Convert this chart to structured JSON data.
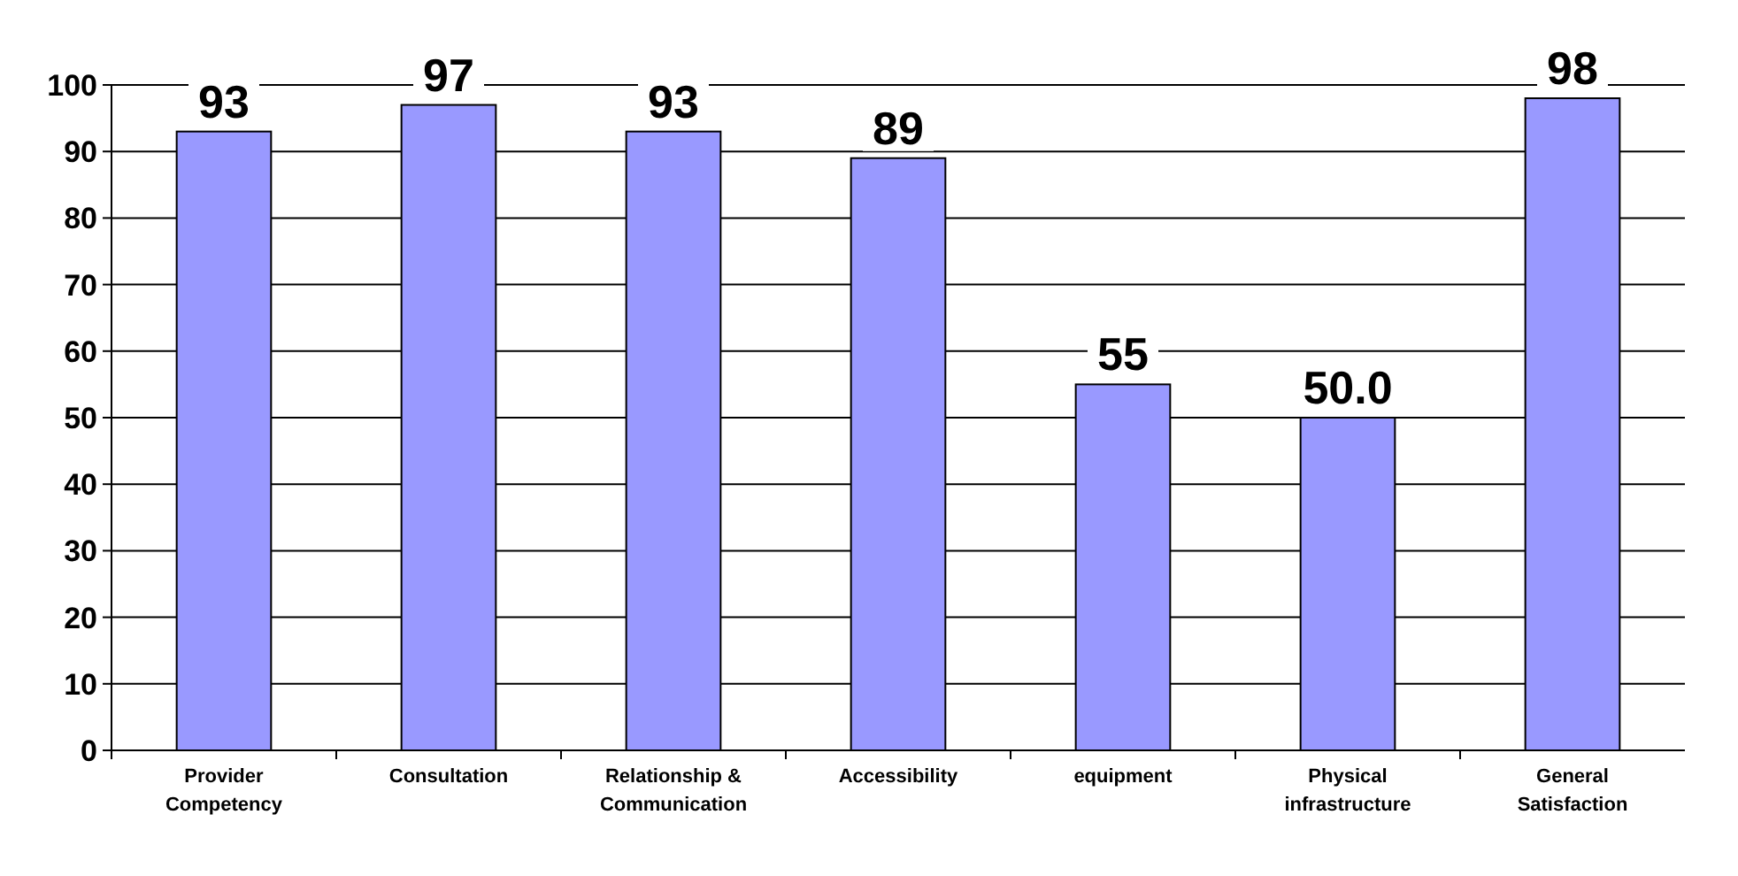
{
  "chart_data": {
    "type": "bar",
    "categories": [
      "Provider Competency",
      "Consultation",
      "Relationship & Communication",
      "Accessibility",
      "equipment",
      "Physical infrastructure",
      "General Satisfaction"
    ],
    "values": [
      93,
      97,
      93,
      89,
      55,
      50,
      98
    ],
    "value_labels": [
      "93",
      "97",
      "93",
      "89",
      "55",
      "50.0",
      "98"
    ],
    "color": "#9999ff",
    "ylim": [
      0,
      100
    ],
    "yticks": [
      0,
      10,
      20,
      30,
      40,
      50,
      60,
      70,
      80,
      90,
      100
    ],
    "grid": "y"
  }
}
